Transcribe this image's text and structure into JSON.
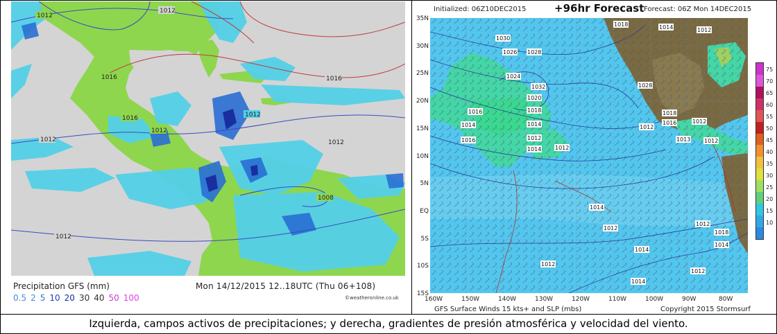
{
  "left": {
    "legend_title": "Precipitation GFS (mm)",
    "legend_values": [
      {
        "v": "0.5",
        "color": "#3f8fd8"
      },
      {
        "v": "2",
        "color": "#3f8fd8"
      },
      {
        "v": "5",
        "color": "#2f7ad0"
      },
      {
        "v": "10",
        "color": "#2142b8"
      },
      {
        "v": "20",
        "color": "#1a2c9a"
      },
      {
        "v": "30",
        "color": "#333333"
      },
      {
        "v": "40",
        "color": "#333333"
      },
      {
        "v": "50",
        "color": "#c83cc8"
      },
      {
        "v": "100",
        "color": "#e040e0"
      }
    ],
    "date_text": "Mon 14/12/2015 12..18UTC  (Thu 06+108)",
    "credit": "©weatheronline.co.uk",
    "isobars": [
      "1012",
      "1012",
      "1016",
      "1016",
      "1012",
      "1016",
      "1012",
      "1012",
      "1008",
      "1012",
      "1012"
    ]
  },
  "right": {
    "initialized": "Initialized: 06Z10DEC2015",
    "title": "+96hr Forecast",
    "forecast": "Forecast: 06Z Mon 14DEC2015",
    "footer_left": "GFS Surface Winds 15 kts+ and SLP (mbs)",
    "footer_right": "Copyright 2015 Stormsurf",
    "lat_labels": [
      "35N",
      "30N",
      "25N",
      "20N",
      "15N",
      "10N",
      "5N",
      "EQ",
      "5S",
      "10S",
      "15S"
    ],
    "lon_labels": [
      "160W",
      "150W",
      "140W",
      "130W",
      "120W",
      "110W",
      "100W",
      "90W",
      "80W"
    ],
    "colorbar_ticks": [
      "75",
      "70",
      "65",
      "60",
      "55",
      "50",
      "45",
      "40",
      "35",
      "30",
      "25",
      "20",
      "15",
      "10"
    ],
    "colorbar_colors": [
      "#cc33cc",
      "#dd55dd",
      "#b01060",
      "#d0306a",
      "#e05555",
      "#c02020",
      "#e06020",
      "#f09030",
      "#f0c040",
      "#e0e040",
      "#a0e060",
      "#60d080",
      "#30c8e0",
      "#30a8e8",
      "#2a8ae0"
    ],
    "isobars": [
      "1018",
      "1014",
      "1012",
      "1030",
      "1026",
      "1028",
      "1024",
      "1032",
      "1020",
      "1018",
      "1016",
      "1014",
      "1014",
      "1012",
      "1016",
      "1014",
      "1012",
      "1028",
      "1018",
      "1016",
      "1012",
      "1012",
      "1013",
      "1012",
      "1014",
      "1012",
      "1014",
      "1012",
      "1012",
      "1014",
      "1012",
      "1018",
      "1014"
    ]
  },
  "caption": "Izquierda, campos activos de precipitaciones;  y derecha, gradientes de presión atmosférica  y velocidad del viento."
}
